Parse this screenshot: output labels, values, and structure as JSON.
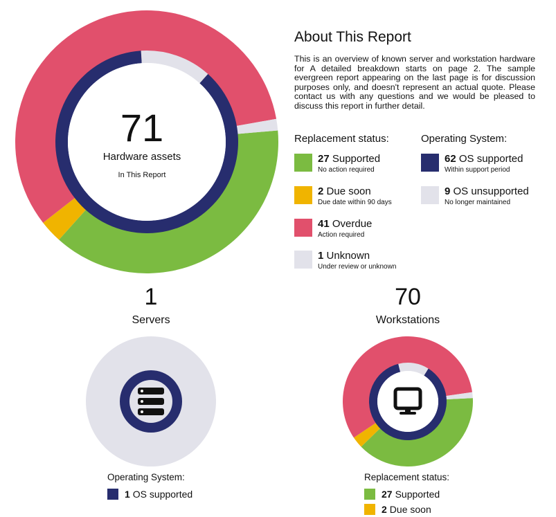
{
  "colors": {
    "supported": "#7bbb41",
    "due_soon": "#f0b400",
    "overdue": "#e1506c",
    "unknown": "#e2e2ea",
    "os_supported": "#272d6e",
    "os_unsupported": "#e2e2ea"
  },
  "main": {
    "count": "71",
    "label": "Hardware assets",
    "sublabel": "In This Report"
  },
  "about": {
    "title": "About This Report",
    "text": "This is an overview of known server and workstation hardware for                         A detailed breakdown starts on page 2. The sample evergreen report appearing on the last page is for discussion purposes only, and doesn't represent an actual quote. Please contact us with any questions and we would be pleased to discuss this report in further detail."
  },
  "replacement": {
    "heading": "Replacement status:",
    "items": [
      {
        "count": "27",
        "label": "Supported",
        "sub": "No action required"
      },
      {
        "count": "2",
        "label": "Due soon",
        "sub": "Due date within 90 days"
      },
      {
        "count": "41",
        "label": "Overdue",
        "sub": "Action required"
      },
      {
        "count": "1",
        "label": "Unknown",
        "sub": "Under review or unknown"
      }
    ]
  },
  "os": {
    "heading": "Operating System:",
    "items": [
      {
        "count": "62",
        "label": "OS supported",
        "sub": "Within support period"
      },
      {
        "count": "9",
        "label": "OS unsupported",
        "sub": "No longer maintained"
      }
    ]
  },
  "servers": {
    "count": "1",
    "label": "Servers",
    "icon": "server-icon",
    "legend_heading": "Operating System:",
    "legend": [
      {
        "count": "1",
        "label": "OS supported"
      }
    ]
  },
  "workstations": {
    "count": "70",
    "label": "Workstations",
    "icon": "monitor-icon",
    "legend_heading": "Replacement status:",
    "legend": [
      {
        "count": "27",
        "label": "Supported"
      },
      {
        "count": "2",
        "label": "Due soon"
      }
    ]
  },
  "chart_data": [
    {
      "type": "pie",
      "title": "",
      "rings": [
        {
          "name": "Replacement status",
          "categories": [
            "Supported",
            "Due soon",
            "Overdue",
            "Unknown"
          ],
          "values": [
            27,
            2,
            41,
            1
          ]
        },
        {
          "name": "Operating System",
          "categories": [
            "OS supported",
            "OS unsupported"
          ],
          "values": [
            62,
            9
          ]
        }
      ]
    },
    {
      "type": "pie",
      "title": "",
      "rings": [
        {
          "name": "Operating System",
          "categories": [
            "OS supported"
          ],
          "values": [
            1
          ]
        }
      ]
    },
    {
      "type": "pie",
      "title": "",
      "rings": [
        {
          "name": "Replacement status",
          "categories": [
            "Supported",
            "Due soon",
            "Overdue",
            "Unknown"
          ],
          "values": [
            27,
            2,
            40,
            1
          ]
        },
        {
          "name": "Operating System",
          "categories": [
            "OS supported",
            "OS unsupported"
          ],
          "values": [
            61,
            9
          ]
        }
      ]
    }
  ]
}
